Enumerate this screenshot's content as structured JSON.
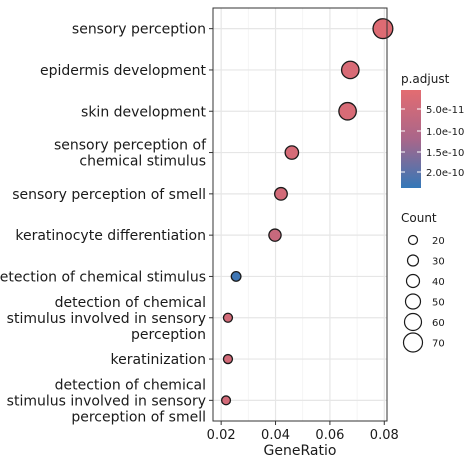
{
  "chart_data": {
    "type": "scatter",
    "xlabel": "GeneRatio",
    "x_ticks": [
      "0.02",
      "0.04",
      "0.06",
      "0.08"
    ],
    "xlim": [
      0.017,
      0.081
    ],
    "grid": true,
    "legend_position": "right",
    "color_legend": {
      "title": "p.adjust",
      "labels": [
        "5.0e-11",
        "1.0e-10",
        "1.5e-10",
        "2.0e-10"
      ],
      "range": [
        2e-11,
        2.3e-10
      ],
      "low_color": "#e36c71",
      "mid_color": "#a9668a",
      "high_color": "#3478b8"
    },
    "size_legend": {
      "title": "Count",
      "labels": [
        "20",
        "30",
        "40",
        "50",
        "60",
        "70"
      ],
      "values": [
        20,
        30,
        40,
        50,
        60,
        70
      ]
    },
    "terms": [
      {
        "label": "sensory perception",
        "generatio": 0.0795,
        "count": 74,
        "padj": 3e-11
      },
      {
        "label": "epidermis development",
        "generatio": 0.0675,
        "count": 62,
        "padj": 4e-11
      },
      {
        "label": "skin development",
        "generatio": 0.0665,
        "count": 62,
        "padj": 4e-11
      },
      {
        "label": "sensory perception of\nchemical stimulus",
        "generatio": 0.046,
        "count": 42,
        "padj": 4.5e-11
      },
      {
        "label": "sensory perception of smell",
        "generatio": 0.042,
        "count": 38,
        "padj": 5e-11
      },
      {
        "label": "keratinocyte differentiation",
        "generatio": 0.0398,
        "count": 36,
        "padj": 7e-11
      },
      {
        "label": "detection of chemical stimulus",
        "generatio": 0.0255,
        "count": 23,
        "padj": 2.2e-10
      },
      {
        "label": "detection of chemical\nstimulus involved in sensory\nperception",
        "generatio": 0.0225,
        "count": 20,
        "padj": 5e-11
      },
      {
        "label": "keratinization",
        "generatio": 0.0225,
        "count": 20,
        "padj": 5e-11
      },
      {
        "label": "detection of chemical\nstimulus involved in sensory\nperception of smell",
        "generatio": 0.0218,
        "count": 19,
        "padj": 5e-11
      }
    ]
  }
}
